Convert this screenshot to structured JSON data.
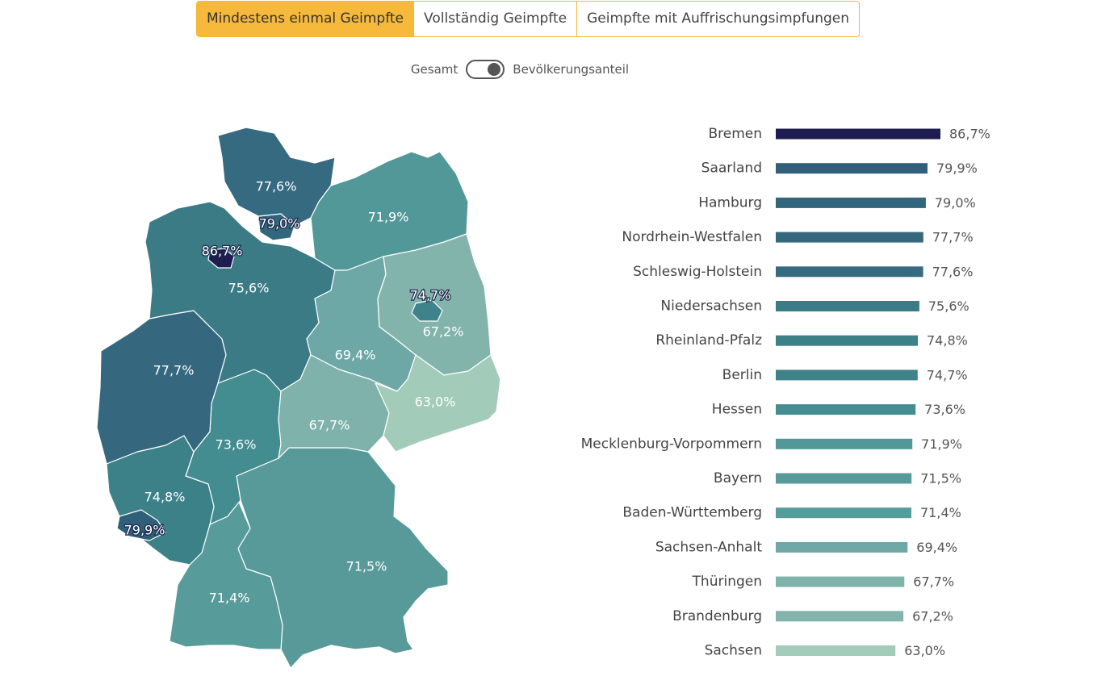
{
  "tabs": [
    {
      "label": "Mindestens einmal Geimpfte",
      "active": true
    },
    {
      "label": "Vollständig Geimpfte",
      "active": false
    },
    {
      "label": "Geimpfte mit Auffrischungsimpfungen",
      "active": false
    }
  ],
  "toggle": {
    "left_label": "Gesamt",
    "right_label": "Bevölkerungsanteil",
    "state": "right"
  },
  "chart_data": {
    "type": "bar",
    "orientation": "horizontal",
    "unit": "%",
    "categories": [
      "Bremen",
      "Saarland",
      "Hamburg",
      "Nordrhein-Westfalen",
      "Schleswig-Holstein",
      "Niedersachsen",
      "Rheinland-Pfalz",
      "Berlin",
      "Hessen",
      "Mecklenburg-Vorpommern",
      "Bayern",
      "Baden-Württemberg",
      "Sachsen-Anhalt",
      "Thüringen",
      "Brandenburg",
      "Sachsen"
    ],
    "values": [
      86.7,
      79.9,
      79.0,
      77.7,
      77.6,
      75.6,
      74.8,
      74.7,
      73.6,
      71.9,
      71.5,
      71.4,
      69.4,
      67.7,
      67.2,
      63.0
    ],
    "value_labels": [
      "86,7%",
      "79,9%",
      "79,0%",
      "77,7%",
      "77,6%",
      "75,6%",
      "74,8%",
      "74,7%",
      "73,6%",
      "71,9%",
      "71,5%",
      "71,4%",
      "69,4%",
      "67,7%",
      "67,2%",
      "63,0%"
    ],
    "colors": [
      "#1f1d4f",
      "#2f5f79",
      "#31667d",
      "#35687f",
      "#366a80",
      "#3a7b86",
      "#3c8188",
      "#3d8389",
      "#438c90",
      "#529898",
      "#579a99",
      "#589b9b",
      "#6da8a6",
      "#7fb2aa",
      "#83b4ab",
      "#a3cbb9"
    ],
    "xlim": [
      0,
      86.7
    ]
  },
  "map": {
    "colors": {
      "Schleswig-Holstein": "#366a80",
      "Hamburg": "#31667d",
      "Bremen": "#1f1d4f",
      "Niedersachsen": "#3a7b86",
      "Nordrhein-Westfalen": "#35687f",
      "Hessen": "#438c90",
      "Rheinland-Pfalz": "#3c8188",
      "Saarland": "#2f5f79",
      "Baden-Württemberg": "#589b9b",
      "Bayern": "#579a99",
      "Thüringen": "#7fb2aa",
      "Sachsen": "#a3cbb9",
      "Sachsen-Anhalt": "#6da8a6",
      "Brandenburg": "#83b4ab",
      "Berlin": "#3d8389",
      "Mecklenburg-Vorpommern": "#529898"
    }
  }
}
